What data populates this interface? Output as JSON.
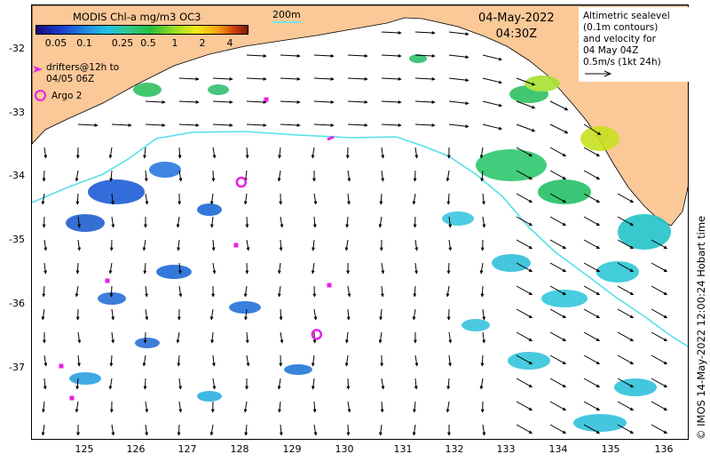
{
  "colorbar": {
    "title": "MODIS Chl-a mg/m3 OC3",
    "ticks": [
      "0.05",
      "0.1",
      "0.25",
      "0.5",
      "1",
      "2",
      "4"
    ]
  },
  "scale": {
    "label": "200m",
    "color": "#6fe6ee"
  },
  "date": {
    "day": "04-May-2022",
    "time": "04:30Z"
  },
  "altimetry_box": {
    "lines": [
      "Altimetric sealevel",
      "(0.1m contours)",
      "and velocity for",
      "04 May 04Z",
      "0.5m/s (1kt 24h)"
    ]
  },
  "drifters_legend": {
    "line1": "drifters@12h to",
    "line2": "04/05 06Z",
    "color": "#e620e6"
  },
  "argo_legend": {
    "label": "Argo 2",
    "color": "#e620e6"
  },
  "credit": "© IMOS 14-May-2022 12:00:24 Hobart time",
  "map": {
    "x_ticks": [
      "125",
      "126",
      "127",
      "128",
      "129",
      "130",
      "131",
      "132",
      "133",
      "134",
      "135",
      "136"
    ],
    "y_ticks": [
      "-32",
      "-33",
      "-34",
      "-35",
      "-36",
      "-37"
    ],
    "land_color": "#fbc898",
    "ocean_color": "#ffffff",
    "argo_floats": [
      {
        "lon": 127.98,
        "lat": -34.07
      },
      {
        "lon": 129.42,
        "lat": -36.45
      }
    ]
  }
}
